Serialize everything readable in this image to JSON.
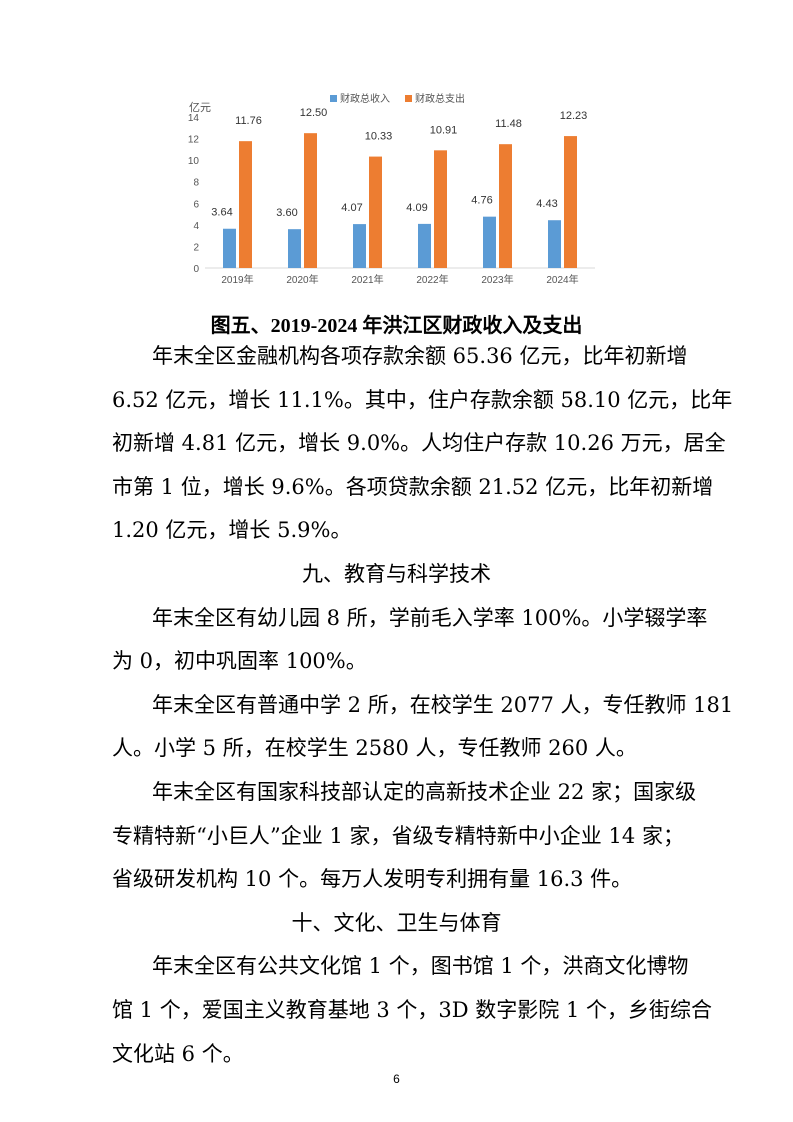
{
  "chart_data": {
    "type": "bar",
    "ylabel": "亿元",
    "categories": [
      "2019年",
      "2020年",
      "2021年",
      "2022年",
      "2023年",
      "2024年"
    ],
    "series": [
      {
        "name": "财政总收入",
        "color": "#5B9BD5",
        "values": [
          3.64,
          3.6,
          4.07,
          4.09,
          4.76,
          4.43
        ],
        "labels": [
          "3.64",
          "3.60",
          "4.07",
          "4.09",
          "4.76",
          "4.43"
        ]
      },
      {
        "name": "财政总支出",
        "color": "#ED7D31",
        "values": [
          11.76,
          12.5,
          10.33,
          10.91,
          11.48,
          12.23
        ],
        "labels": [
          "11.76",
          "12.50",
          "10.33",
          "10.91",
          "11.48",
          "12.23"
        ]
      }
    ],
    "ylim": [
      0,
      14
    ],
    "yticks": [
      "0",
      "2",
      "4",
      "6",
      "8",
      "10",
      "12",
      "14"
    ],
    "grid": false,
    "legend": "top"
  },
  "caption": "图五、2019-2024 年洪江区财政收入及支出",
  "blocks": [
    {
      "type": "p",
      "lines": [
        "年末全区金融机构各项存款余额 65.36 亿元，比年初新增",
        "6.52 亿元，增长 11.1%。其中，住户存款余额 58.10 亿元，比年",
        "初新增 4.81 亿元，增长 9.0%。人均住户存款 10.26 万元，居全",
        "市第 1 位，增长 9.6%。各项贷款余额 21.52 亿元，比年初新增",
        "1.20 亿元，增长 5.9%。"
      ]
    },
    {
      "type": "h",
      "text": "九、教育与科学技术"
    },
    {
      "type": "p",
      "lines": [
        "年末全区有幼儿园 8 所，学前毛入学率 100%。小学辍学率",
        "为 0，初中巩固率 100%。"
      ]
    },
    {
      "type": "p",
      "lines": [
        "年末全区有普通中学 2 所，在校学生 2077 人，专任教师 181",
        "人。小学 5 所，在校学生 2580 人，专任教师 260 人。"
      ]
    },
    {
      "type": "p",
      "lines": [
        "年末全区有国家科技部认定的高新技术企业 22 家；国家级",
        "专精特新“小巨人”企业 1 家，省级专精特新中小企业 14 家；",
        "省级研发机构 10 个。每万人发明专利拥有量 16.3 件。"
      ]
    },
    {
      "type": "h",
      "text": "十、文化、卫生与体育"
    },
    {
      "type": "p",
      "lines": [
        "年末全区有公共文化馆 1 个，图书馆 1 个，洪商文化博物",
        "馆 1 个，爱国主义教育基地 3 个，3D 数字影院 1 个，乡街综合",
        "文化站 6 个。"
      ]
    }
  ],
  "page_number": "6"
}
